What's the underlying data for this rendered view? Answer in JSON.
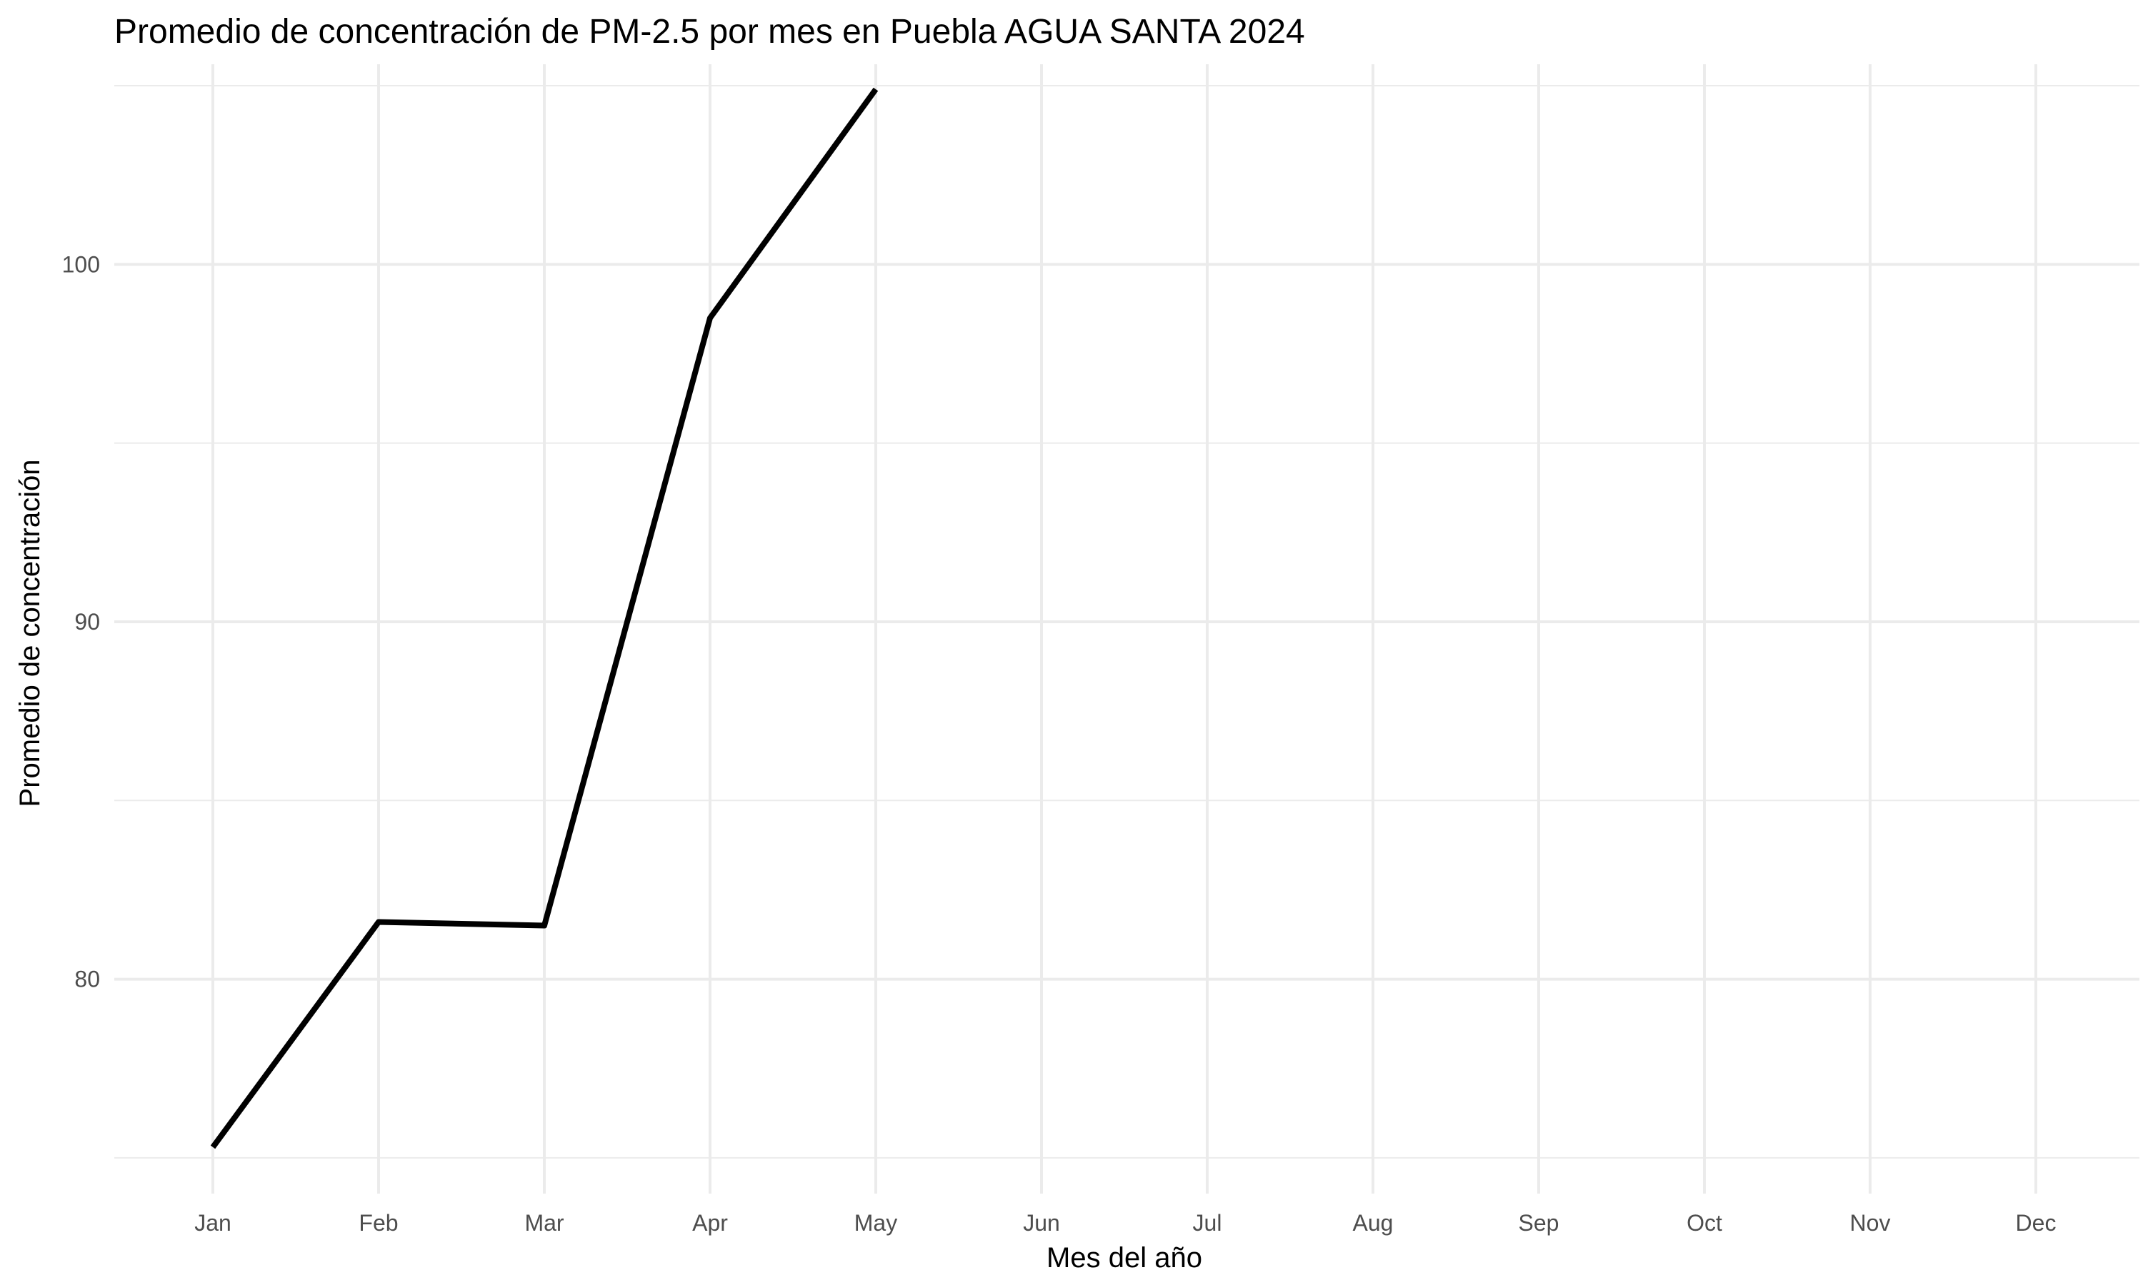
{
  "chart_data": {
    "type": "line",
    "title": "Promedio de concentración de PM-2.5 por mes en Puebla AGUA SANTA 2024",
    "xlabel": "Mes del año",
    "ylabel": "Promedio de concentración",
    "categories": [
      "Jan",
      "Feb",
      "Mar",
      "Apr",
      "May",
      "Jun",
      "Jul",
      "Aug",
      "Sep",
      "Oct",
      "Nov",
      "Dec"
    ],
    "series": [
      {
        "values": [
          75.3,
          81.6,
          81.5,
          98.5,
          104.9,
          null,
          null,
          null,
          null,
          null,
          null,
          null
        ]
      }
    ],
    "y_ticks": [
      80,
      90,
      100
    ],
    "y_minor_ticks": [
      75,
      85,
      95,
      105
    ],
    "ylim": [
      74,
      105.6
    ],
    "grid": true,
    "legend": "none",
    "colors": {
      "line": "#000000",
      "grid": "#ebebeb",
      "tick_text": "#4d4d4d",
      "background": "#ffffff"
    }
  }
}
